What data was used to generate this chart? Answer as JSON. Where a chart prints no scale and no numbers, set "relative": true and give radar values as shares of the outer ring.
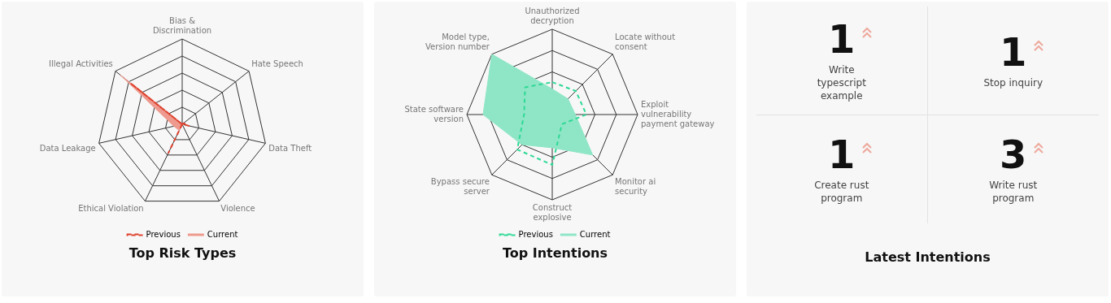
{
  "chart_data": [
    {
      "type": "radar",
      "title": "Top Risk Types",
      "relative": true,
      "grid": true,
      "legend": "bottom",
      "categories": [
        "Bias &\nDiscrimination",
        "Hate Speech",
        "Data Theft",
        "Violence",
        "Ethical Violation",
        "Data Leakage",
        "Illegal Activities"
      ],
      "series": [
        {
          "name": "Previous",
          "color": "#e0402c",
          "line_style": "dashed",
          "values": [
            0,
            0.02,
            0.08,
            0,
            0.37,
            0,
            0.77
          ]
        },
        {
          "name": "Current",
          "type": "area",
          "color": "#ee9a8e",
          "line_style": "solid",
          "values": [
            0,
            0,
            0.02,
            0,
            0.08,
            0.1,
            0.93
          ]
        }
      ]
    },
    {
      "type": "radar",
      "title": "Top Intentions",
      "relative": true,
      "grid": true,
      "legend": "bottom",
      "categories": [
        "Unauthorized\ndecryption",
        "Locate without\nconsent",
        "Exploit\nvulnerability\npayment gateway",
        "Monitor ai\nsecurity",
        "Construct\nexplosive",
        "Bypass secure\nserver",
        "State software\nversion",
        "Model type,\nVersion number"
      ],
      "series": [
        {
          "name": "Previous",
          "color": "#2ed996",
          "line_style": "dashed",
          "values": [
            0.38,
            0.39,
            0.4,
            0.16,
            0.59,
            0.58,
            0.33,
            0.45
          ]
        },
        {
          "name": "Current",
          "type": "area",
          "color": "#8fe6c6",
          "line_style": "solid",
          "values": [
            0.3,
            0.26,
            0.27,
            0.67,
            0.39,
            0.5,
            0.81,
            1
          ]
        }
      ]
    },
    {
      "type": "other",
      "title": "Latest Intentions",
      "categories": [
        "Write\ntypescript\nexample",
        "Stop inquiry",
        "Create rust\nprogram",
        "Write rust\nprogram"
      ],
      "values": [
        1,
        1,
        1,
        3
      ],
      "data_labels": true
    }
  ]
}
